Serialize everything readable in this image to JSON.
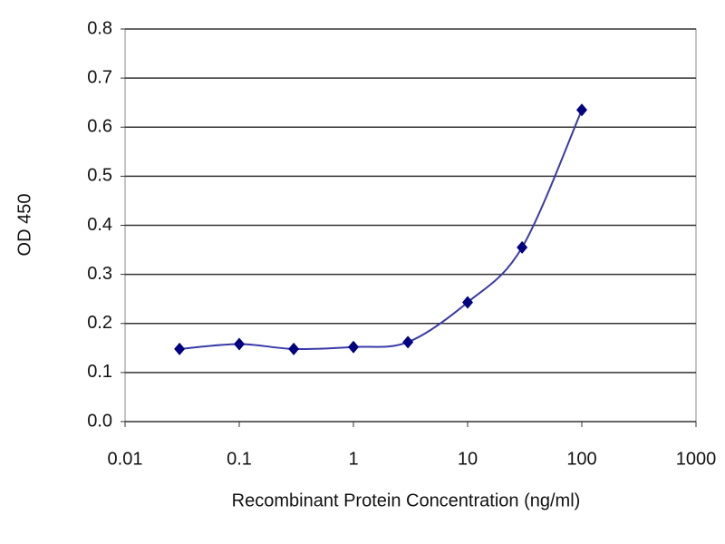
{
  "chart_data": {
    "type": "line",
    "x_label": "Recombinant Protein Concentration (ng/ml)",
    "y_label": "OD 450",
    "x": [
      0.03,
      0.1,
      0.3,
      1,
      3,
      10,
      30,
      100
    ],
    "series": [
      {
        "color": "#000080",
        "values": [
          0.148,
          0.158,
          0.148,
          0.152,
          0.162,
          0.243,
          0.355,
          0.635
        ]
      }
    ],
    "xlim": [
      0.01,
      1000
    ],
    "xticks": [
      0.01,
      0.1,
      1,
      10,
      100,
      1000
    ],
    "x_log": true,
    "ylim": [
      0,
      0.8
    ],
    "yticks": [
      {
        "value": 0,
        "label": "0.0"
      },
      0.1,
      0.2,
      0.3,
      0.4,
      0.5,
      0.6,
      0.7,
      0.8
    ],
    "grid": true
  }
}
